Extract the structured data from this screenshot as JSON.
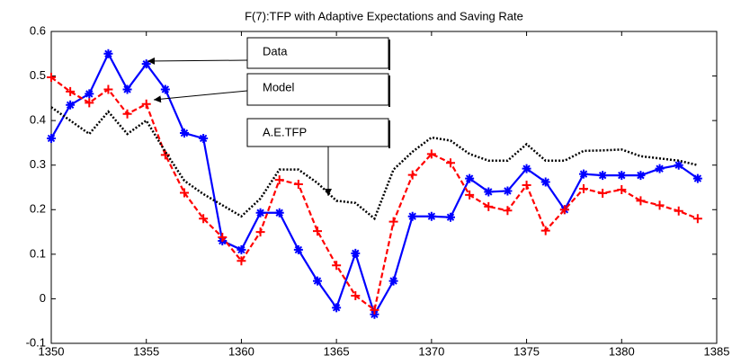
{
  "chart_data": {
    "type": "line",
    "title": "F(7):TFP with Adaptive Expectations and Saving Rate",
    "x": [
      1350,
      1351,
      1352,
      1353,
      1354,
      1355,
      1356,
      1357,
      1358,
      1359,
      1360,
      1361,
      1362,
      1363,
      1364,
      1365,
      1366,
      1367,
      1368,
      1369,
      1370,
      1371,
      1372,
      1373,
      1374,
      1375,
      1376,
      1377,
      1378,
      1379,
      1380,
      1381,
      1382,
      1383,
      1384
    ],
    "series": [
      {
        "name": "Data",
        "color": "#0000ff",
        "line": "solid",
        "marker": "star",
        "values": [
          0.36,
          0.435,
          0.46,
          0.55,
          0.47,
          0.527,
          0.47,
          0.372,
          0.36,
          0.13,
          0.11,
          0.193,
          0.193,
          0.11,
          0.04,
          -0.02,
          0.102,
          -0.035,
          0.04,
          0.185,
          0.185,
          0.183,
          0.27,
          0.24,
          0.242,
          0.292,
          0.262,
          0.2,
          0.28,
          0.277,
          0.277,
          0.277,
          0.292,
          0.3,
          0.27
        ]
      },
      {
        "name": "Model",
        "color": "#ff0000",
        "line": "dashed",
        "marker": "plus",
        "values": [
          0.497,
          0.465,
          0.44,
          0.47,
          0.415,
          0.437,
          0.323,
          0.238,
          0.18,
          0.138,
          0.085,
          0.15,
          0.267,
          0.257,
          0.152,
          0.075,
          0.007,
          -0.025,
          0.173,
          0.278,
          0.325,
          0.305,
          0.233,
          0.207,
          0.198,
          0.255,
          0.153,
          0.2,
          0.247,
          0.237,
          0.245,
          0.22,
          0.21,
          0.197,
          0.18
        ]
      },
      {
        "name": "A.E.TFP",
        "color": "#000000",
        "line": "dotted",
        "marker": "none",
        "values": [
          0.43,
          0.4,
          0.37,
          0.42,
          0.37,
          0.4,
          0.33,
          0.265,
          0.235,
          0.21,
          0.185,
          0.225,
          0.29,
          0.29,
          0.26,
          0.22,
          0.215,
          0.18,
          0.29,
          0.33,
          0.362,
          0.355,
          0.325,
          0.31,
          0.31,
          0.347,
          0.31,
          0.31,
          0.332,
          0.333,
          0.335,
          0.32,
          0.315,
          0.31,
          0.3
        ]
      }
    ],
    "xlim": [
      1350,
      1385
    ],
    "xticks": [
      1350,
      1355,
      1360,
      1365,
      1370,
      1375,
      1380,
      1385
    ],
    "ylim": [
      -0.1,
      0.6
    ],
    "yticks": [
      -0.1,
      0,
      0.1,
      0.2,
      0.3,
      0.4,
      0.5,
      0.6
    ],
    "grid": false
  }
}
